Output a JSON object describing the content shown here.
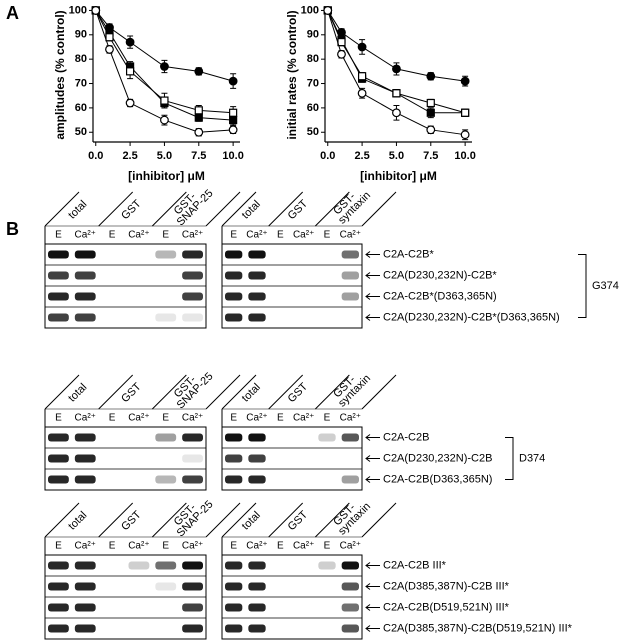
{
  "panel_labels": [
    "A",
    "B"
  ],
  "chart_data": [
    {
      "type": "line",
      "y_label": "amplitudes (% control)",
      "x_label": "[inhibitor] μM",
      "x": [
        0,
        1,
        2.5,
        5,
        7.5,
        10
      ],
      "xlim": [
        -0.2,
        10.5
      ],
      "xticks": [
        {
          "value": 0,
          "label": "0.0"
        },
        {
          "value": 2.5,
          "label": "2.5"
        },
        {
          "value": 5,
          "label": "5.0"
        },
        {
          "value": 7.5,
          "label": "7.5"
        },
        {
          "value": 10,
          "label": "10.0"
        }
      ],
      "ylim": [
        46,
        101
      ],
      "yticks": [
        50,
        60,
        70,
        80,
        90,
        100
      ],
      "series": [
        {
          "marker": "circle",
          "filled": true,
          "color": "#000000",
          "values": [
            100,
            93,
            87,
            77,
            75,
            71
          ],
          "errors": [
            0,
            1.5,
            2.5,
            2.5,
            1.5,
            3
          ]
        },
        {
          "marker": "square",
          "filled": true,
          "color": "#000000",
          "values": [
            100,
            91,
            77,
            62,
            56,
            55
          ],
          "errors": [
            0,
            1.5,
            2,
            2,
            1.5,
            2
          ]
        },
        {
          "marker": "square",
          "filled": false,
          "color": "#000000",
          "values": [
            100,
            89,
            75,
            63,
            59,
            58
          ],
          "errors": [
            0,
            1.5,
            3,
            3,
            2,
            2.5
          ]
        },
        {
          "marker": "circle",
          "filled": false,
          "color": "#000000",
          "values": [
            100,
            84,
            62,
            55,
            50,
            51
          ],
          "errors": [
            0,
            1.5,
            1.5,
            2,
            1.5,
            1.5
          ]
        }
      ]
    },
    {
      "type": "line",
      "y_label": "initial rates (% control)",
      "x_label": "[inhibitor] μM",
      "x": [
        0,
        1,
        2.5,
        5,
        7.5,
        10
      ],
      "xlim": [
        -0.2,
        10.5
      ],
      "xticks": [
        {
          "value": 0,
          "label": "0.0"
        },
        {
          "value": 2.5,
          "label": "2.5"
        },
        {
          "value": 5,
          "label": "5.0"
        },
        {
          "value": 7.5,
          "label": "7.5"
        },
        {
          "value": 10,
          "label": "10.0"
        }
      ],
      "ylim": [
        46,
        101
      ],
      "yticks": [
        50,
        60,
        70,
        80,
        90,
        100
      ],
      "series": [
        {
          "marker": "circle",
          "filled": true,
          "color": "#000000",
          "values": [
            100,
            91,
            85,
            76,
            73,
            71
          ],
          "errors": [
            0,
            1.5,
            3,
            2.5,
            1.5,
            2
          ]
        },
        {
          "marker": "square",
          "filled": true,
          "color": "#000000",
          "values": [
            100,
            88,
            72,
            66,
            58,
            58
          ],
          "errors": [
            0,
            1.5,
            1.5,
            1.5,
            2,
            1.5
          ]
        },
        {
          "marker": "square",
          "filled": false,
          "color": "#000000",
          "values": [
            100,
            87,
            73,
            66,
            62,
            58
          ],
          "errors": [
            0,
            1.5,
            1.5,
            1.5,
            1.5,
            1.5
          ]
        },
        {
          "marker": "circle",
          "filled": false,
          "color": "#000000",
          "values": [
            100,
            82,
            66,
            58,
            51,
            49
          ],
          "errors": [
            0,
            1.5,
            2,
            3,
            1.5,
            2
          ]
        }
      ]
    }
  ],
  "blot_groups": [
    {
      "panels": [
        {
          "headers": [
            [
              "total"
            ],
            [
              "GST"
            ],
            [
              "GST-",
              "SNAP-25"
            ]
          ],
          "lanes": [
            "E",
            "Ca²⁺",
            "E",
            "Ca²⁺",
            "E",
            "Ca²⁺"
          ]
        },
        {
          "headers": [
            [
              "total"
            ],
            [
              "GST"
            ],
            [
              "GST-",
              "syntaxin"
            ]
          ],
          "lanes": [
            "E",
            "Ca²⁺",
            "E",
            "Ca²⁺",
            "E",
            "Ca²⁺"
          ]
        }
      ],
      "rows": [
        "C2A-C2B*",
        "C2A(D230,232N)-C2B*",
        "C2A-C2B*(D363,365N)",
        "C2A(D230,232N)-C2B*(D363,365N)"
      ],
      "bracket": "G374"
    },
    {
      "panels": [
        {
          "headers": [
            [
              "total"
            ],
            [
              "GST"
            ],
            [
              "GST-",
              "SNAP-25"
            ]
          ],
          "lanes": [
            "E",
            "Ca²⁺",
            "E",
            "Ca²⁺",
            "E",
            "Ca²⁺"
          ]
        },
        {
          "headers": [
            [
              "total"
            ],
            [
              "GST"
            ],
            [
              "GST-",
              "syntaxin"
            ]
          ],
          "lanes": [
            "E",
            "Ca²⁺",
            "E",
            "Ca²⁺",
            "E",
            "Ca²⁺"
          ]
        }
      ],
      "rows": [
        "C2A-C2B",
        "C2A(D230,232N)-C2B",
        "C2A-C2B(D363,365N)"
      ],
      "bracket": "D374"
    },
    {
      "panels": [
        {
          "headers": [
            [
              "total"
            ],
            [
              "GST"
            ],
            [
              "GST-",
              "SNAP-25"
            ]
          ],
          "lanes": [
            "E",
            "Ca²⁺",
            "E",
            "Ca²⁺",
            "E",
            "Ca²⁺"
          ]
        },
        {
          "headers": [
            [
              "total"
            ],
            [
              "GST"
            ],
            [
              "GST-",
              "syntaxin"
            ]
          ],
          "lanes": [
            "E",
            "Ca²⁺",
            "E",
            "Ca²⁺",
            "E",
            "Ca²⁺"
          ]
        }
      ],
      "rows": [
        "C2A-C2B III*",
        "C2A(D385,387N)-C2B III*",
        "C2A-C2B(D519,521N)  III*",
        "C2A(D385,387N)-C2B(D519,521N) III*"
      ]
    }
  ]
}
